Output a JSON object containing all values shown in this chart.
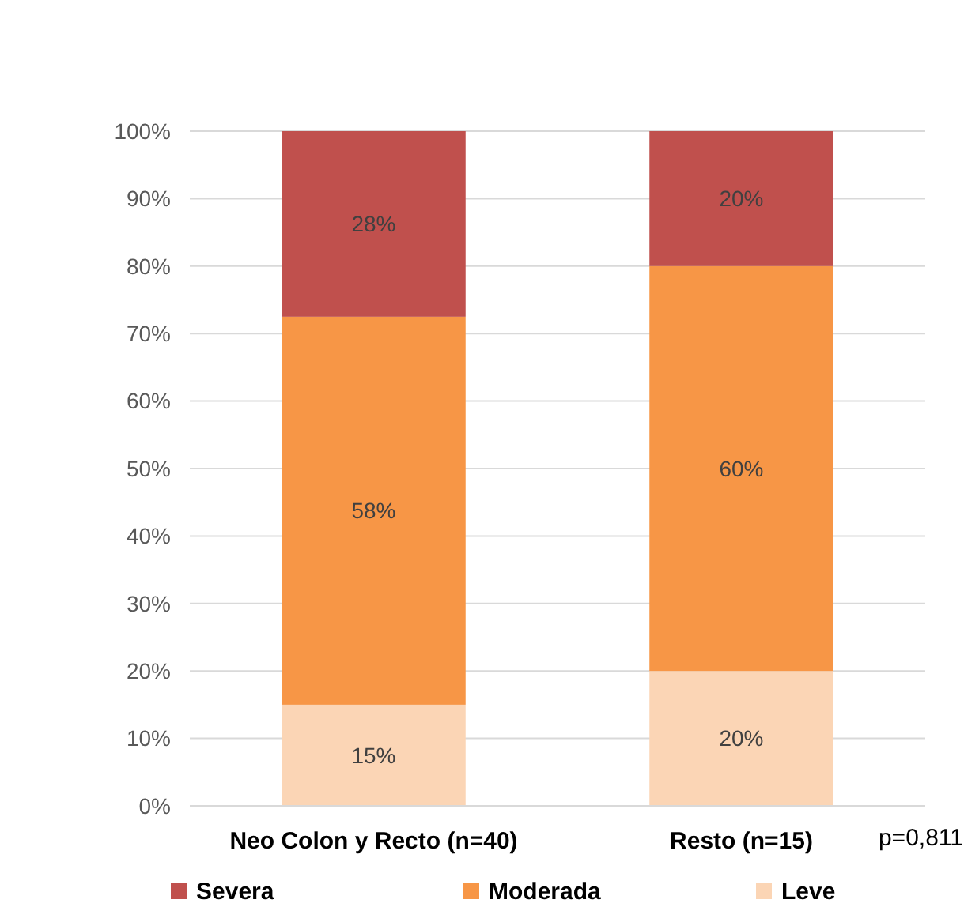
{
  "chart_data": {
    "type": "bar",
    "stacked": true,
    "categories": [
      "Neo Colon y Recto (n=40)",
      "Resto (n=15)"
    ],
    "series": [
      {
        "name": "Leve",
        "color": "#fbd5b5",
        "values": [
          15,
          20
        ],
        "value_labels": [
          "15%",
          "20%"
        ]
      },
      {
        "name": "Moderada",
        "color": "#f79646",
        "values": [
          57.5,
          60
        ],
        "value_labels": [
          "58%",
          "60%"
        ]
      },
      {
        "name": "Severa",
        "color": "#c0504d",
        "values": [
          27.5,
          20
        ],
        "value_labels": [
          "28%",
          "20%"
        ]
      }
    ],
    "ylim": [
      0,
      100
    ],
    "yticks": [
      {
        "value": 0,
        "label": "0%"
      },
      {
        "value": 10,
        "label": "10%"
      },
      {
        "value": 20,
        "label": "20%"
      },
      {
        "value": 30,
        "label": "30%"
      },
      {
        "value": 40,
        "label": "40%"
      },
      {
        "value": 50,
        "label": "50%"
      },
      {
        "value": 60,
        "label": "60%"
      },
      {
        "value": 70,
        "label": "70%"
      },
      {
        "value": 80,
        "label": "80%"
      },
      {
        "value": 90,
        "label": "90%"
      },
      {
        "value": 100,
        "label": "100%"
      }
    ],
    "grid": "y",
    "legend": "bottom",
    "annotations": [
      "p=0,811"
    ]
  }
}
